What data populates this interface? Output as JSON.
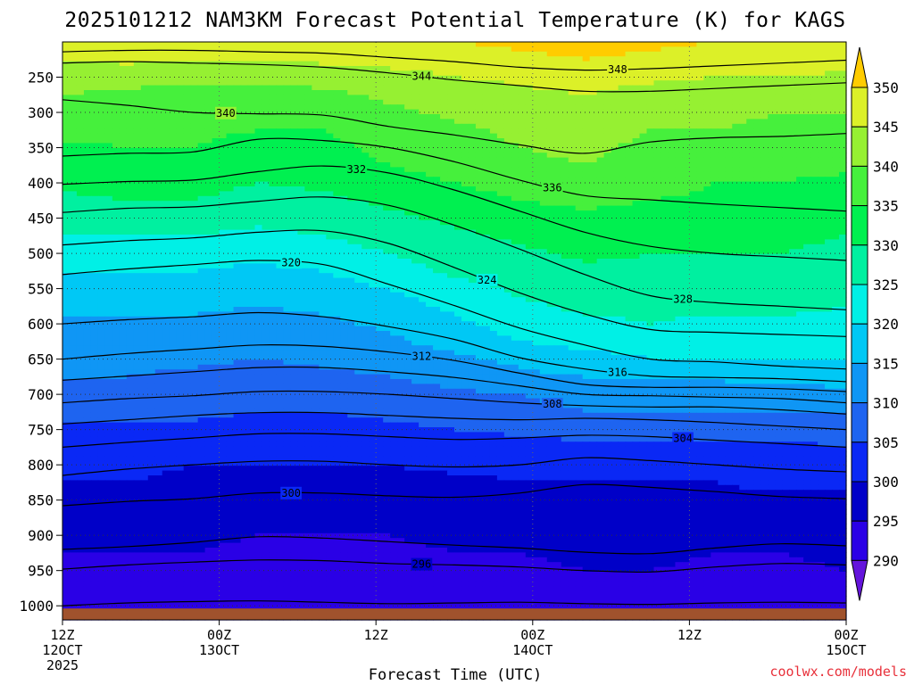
{
  "chart_data": {
    "type": "time-height filled contour",
    "title": "2025101212 NAM3KM Forecast Potential Temperature (K) for KAGS",
    "xlabel": "Forecast Time (UTC)",
    "ylabel": "Pressure (hPa)",
    "credit": "coolwx.com/models",
    "y_ticks": [
      "250",
      "300",
      "350",
      "400",
      "450",
      "500",
      "550",
      "600",
      "650",
      "700",
      "750",
      "800",
      "850",
      "900",
      "950",
      "1000"
    ],
    "y_tick_values": [
      250,
      300,
      350,
      400,
      450,
      500,
      550,
      600,
      650,
      700,
      750,
      800,
      850,
      900,
      950,
      1000
    ],
    "ylim": [
      200,
      1020
    ],
    "x_ticks": [
      {
        "hour": 0,
        "line1": "12Z",
        "line2": "12OCT",
        "line3": "2025"
      },
      {
        "hour": 12,
        "line1": "00Z",
        "line2": "13OCT",
        "line3": ""
      },
      {
        "hour": 24,
        "line1": "12Z",
        "line2": "",
        "line3": ""
      },
      {
        "hour": 36,
        "line1": "00Z",
        "line2": "14OCT",
        "line3": ""
      },
      {
        "hour": 48,
        "line1": "12Z",
        "line2": "",
        "line3": ""
      },
      {
        "hour": 60,
        "line1": "00Z",
        "line2": "15OCT",
        "line3": ""
      }
    ],
    "xlim": [
      0,
      60
    ],
    "colorbar": {
      "levels": [
        "290",
        "295",
        "300",
        "305",
        "310",
        "315",
        "320",
        "325",
        "330",
        "335",
        "340",
        "345",
        "350"
      ],
      "colors": [
        "#6414dc",
        "#2a00e6",
        "#0000c8",
        "#0a28f5",
        "#1e64f0",
        "#0f96f5",
        "#00c8f5",
        "#00f0e6",
        "#00f0a0",
        "#00f050",
        "#46f03c",
        "#96f032",
        "#dcf028",
        "#ffff00",
        "#ffcc00"
      ]
    },
    "series": [
      {
        "name": "isentrope",
        "label": "",
        "values": [
          1000,
          996,
          994,
          993,
          995,
          997,
          996,
          995,
          997,
          998,
          996,
          995,
          996
        ]
      },
      {
        "name": "isentrope",
        "label": "296",
        "values": [
          948,
          942,
          938,
          935,
          936,
          940,
          942,
          945,
          950,
          952,
          945,
          940,
          942
        ]
      },
      {
        "name": "isentrope",
        "label": "",
        "values": [
          920,
          916,
          910,
          902,
          904,
          909,
          914,
          918,
          924,
          926,
          918,
          912,
          915
        ]
      },
      {
        "name": "isentrope",
        "label": "300",
        "values": [
          858,
          852,
          848,
          840,
          840,
          844,
          846,
          840,
          828,
          832,
          838,
          845,
          848
        ]
      },
      {
        "name": "isentrope",
        "label": "",
        "values": [
          815,
          806,
          800,
          795,
          795,
          800,
          803,
          800,
          790,
          794,
          800,
          806,
          810
        ]
      },
      {
        "name": "isentrope",
        "label": "304",
        "values": [
          775,
          768,
          762,
          756,
          756,
          760,
          764,
          762,
          758,
          760,
          765,
          770,
          775
        ]
      },
      {
        "name": "isentrope",
        "label": "",
        "values": [
          742,
          736,
          730,
          726,
          726,
          730,
          734,
          736,
          734,
          736,
          740,
          745,
          750
        ]
      },
      {
        "name": "isentrope",
        "label": "308",
        "values": [
          712,
          706,
          702,
          696,
          696,
          700,
          706,
          712,
          716,
          718,
          718,
          722,
          728
        ]
      },
      {
        "name": "isentrope",
        "label": "",
        "values": [
          680,
          674,
          668,
          662,
          662,
          668,
          676,
          688,
          700,
          702,
          704,
          706,
          712
        ]
      },
      {
        "name": "isentrope",
        "label": "312",
        "values": [
          650,
          642,
          636,
          630,
          632,
          640,
          652,
          670,
          686,
          690,
          690,
          692,
          696
        ]
      },
      {
        "name": "isentrope",
        "label": "316",
        "values": [
          600,
          594,
          590,
          584,
          590,
          604,
          622,
          648,
          664,
          674,
          676,
          678,
          682
        ]
      },
      {
        "name": "isentrope",
        "label": "320",
        "values": [
          530,
          522,
          516,
          510,
          516,
          544,
          574,
          606,
          630,
          650,
          654,
          660,
          664
        ]
      },
      {
        "name": "isentrope",
        "label": "324",
        "values": [
          488,
          482,
          478,
          470,
          468,
          486,
          520,
          556,
          586,
          608,
          612,
          615,
          618
        ]
      },
      {
        "name": "isentrope",
        "label": "328",
        "values": [
          442,
          436,
          434,
          426,
          420,
          432,
          460,
          494,
          530,
          560,
          570,
          575,
          580
        ]
      },
      {
        "name": "isentrope",
        "label": "332",
        "values": [
          402,
          398,
          396,
          384,
          376,
          386,
          410,
          440,
          470,
          490,
          500,
          505,
          510
        ]
      },
      {
        "name": "isentrope",
        "label": "336",
        "values": [
          362,
          358,
          356,
          338,
          340,
          350,
          370,
          396,
          418,
          424,
          430,
          435,
          440
        ]
      },
      {
        "name": "isentrope",
        "label": "340",
        "values": [
          282,
          290,
          300,
          302,
          304,
          320,
          332,
          346,
          358,
          342,
          336,
          334,
          330
        ]
      },
      {
        "name": "isentrope",
        "label": "344",
        "values": [
          230,
          228,
          230,
          232,
          236,
          244,
          254,
          262,
          270,
          270,
          266,
          262,
          258
        ]
      },
      {
        "name": "isentrope",
        "label": "348",
        "values": [
          214,
          212,
          212,
          214,
          216,
          222,
          228,
          236,
          240,
          238,
          234,
          230,
          226
        ]
      }
    ],
    "series_hours": [
      0,
      5,
      10,
      15,
      20,
      25,
      30,
      35,
      40,
      45,
      50,
      55,
      60
    ],
    "theta_grid": {
      "pressures": [
        200,
        225,
        250,
        275,
        300,
        325,
        350,
        375,
        400,
        425,
        450,
        475,
        500,
        525,
        550,
        575,
        600,
        625,
        650,
        675,
        700,
        725,
        750,
        775,
        800,
        825,
        850,
        875,
        900,
        925,
        950,
        975,
        1000,
        1020
      ],
      "hours": [
        0,
        5,
        10,
        15,
        20,
        25,
        30,
        35,
        40,
        45,
        50,
        55,
        60
      ],
      "theta": [
        [
          348,
          348,
          348,
          349,
          349,
          349,
          350,
          351,
          352,
          351,
          350,
          350,
          349
        ],
        [
          345,
          346,
          345,
          345,
          346,
          347,
          348,
          349,
          350,
          349,
          348,
          348,
          347
        ],
        [
          342,
          342,
          341,
          341,
          342,
          343,
          345,
          346,
          347,
          346,
          345,
          345,
          344
        ],
        [
          340,
          339,
          338,
          338,
          339,
          341,
          342,
          344,
          345,
          343,
          342,
          342,
          341
        ],
        [
          339,
          338,
          337,
          336,
          337,
          339,
          341,
          342,
          343,
          341,
          341,
          340,
          340
        ],
        [
          337,
          337,
          336,
          335,
          335,
          337,
          339,
          341,
          342,
          340,
          340,
          339,
          339
        ],
        [
          334,
          335,
          335,
          333,
          334,
          336,
          338,
          340,
          341,
          339,
          338,
          338,
          337
        ],
        [
          333,
          333,
          333,
          332,
          333,
          335,
          337,
          339,
          340,
          338,
          337,
          336,
          336
        ],
        [
          331,
          332,
          332,
          330,
          331,
          333,
          335,
          337,
          338,
          337,
          335,
          335,
          334
        ],
        [
          329,
          330,
          330,
          328,
          329,
          331,
          333,
          335,
          336,
          335,
          334,
          334,
          333
        ],
        [
          327,
          327,
          327,
          326,
          327,
          329,
          331,
          333,
          334,
          333,
          332,
          332,
          332
        ],
        [
          325,
          325,
          325,
          324,
          325,
          327,
          329,
          331,
          333,
          332,
          331,
          331,
          330
        ],
        [
          322,
          322,
          322,
          321,
          323,
          325,
          327,
          329,
          331,
          330,
          330,
          330,
          329
        ],
        [
          320,
          320,
          320,
          319,
          320,
          323,
          326,
          328,
          329,
          329,
          328,
          328,
          328
        ],
        [
          318,
          318,
          318,
          317,
          318,
          320,
          323,
          326,
          328,
          328,
          327,
          327,
          327
        ],
        [
          316,
          316,
          316,
          315,
          316,
          318,
          321,
          324,
          326,
          326,
          326,
          326,
          325
        ],
        [
          314,
          314,
          314,
          313,
          314,
          316,
          319,
          322,
          324,
          325,
          324,
          324,
          324
        ],
        [
          313,
          313,
          312,
          311,
          312,
          314,
          317,
          320,
          322,
          322,
          322,
          322,
          322
        ],
        [
          312,
          311,
          311,
          310,
          311,
          312,
          314,
          316,
          318,
          320,
          320,
          320,
          320
        ],
        [
          310,
          310,
          309,
          308,
          309,
          310,
          312,
          314,
          315,
          316,
          316,
          317,
          318
        ],
        [
          308,
          308,
          308,
          307,
          307,
          308,
          309,
          310,
          312,
          312,
          312,
          312,
          313
        ],
        [
          306,
          306,
          306,
          305,
          305,
          306,
          307,
          308,
          310,
          310,
          310,
          310,
          310
        ],
        [
          304,
          304,
          304,
          303,
          303,
          304,
          305,
          306,
          307,
          307,
          307,
          307,
          307
        ],
        [
          303,
          303,
          302,
          302,
          302,
          302,
          303,
          303,
          304,
          304,
          304,
          304,
          305
        ],
        [
          301,
          301,
          300,
          300,
          300,
          300,
          301,
          301,
          302,
          302,
          302,
          302,
          302
        ],
        [
          300,
          300,
          299,
          299,
          299,
          299,
          299,
          300,
          300,
          300,
          300,
          301,
          301
        ],
        [
          299,
          298,
          298,
          297,
          297,
          298,
          298,
          298,
          299,
          299,
          299,
          299,
          299
        ],
        [
          297,
          297,
          297,
          296,
          296,
          296,
          297,
          297,
          298,
          298,
          298,
          298,
          298
        ],
        [
          296,
          296,
          296,
          295,
          295,
          295,
          296,
          296,
          297,
          297,
          297,
          297,
          297
        ],
        [
          295,
          295,
          295,
          294,
          294,
          294,
          295,
          295,
          296,
          296,
          295,
          295,
          296
        ],
        [
          294,
          294,
          294,
          293,
          293,
          293,
          294,
          294,
          295,
          295,
          294,
          294,
          295
        ],
        [
          293,
          293,
          293,
          292,
          292,
          292,
          293,
          293,
          294,
          294,
          293,
          293,
          294
        ],
        [
          292,
          291,
          292,
          291,
          291,
          291,
          292,
          292,
          293,
          293,
          292,
          292,
          293
        ],
        [
          291,
          290,
          291,
          290,
          290,
          290,
          291,
          291,
          292,
          292,
          291,
          291,
          292
        ]
      ]
    }
  }
}
